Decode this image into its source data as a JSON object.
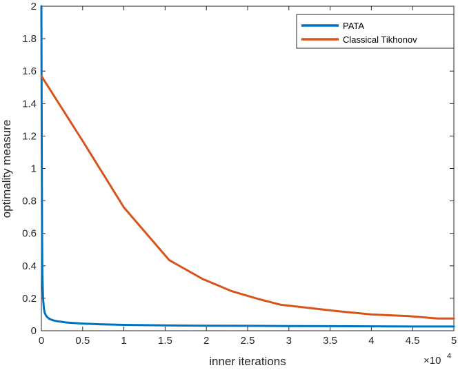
{
  "chart_data": {
    "type": "line",
    "title": "",
    "xlabel": "inner iterations",
    "ylabel": "optimality measure",
    "x_multiplier_base": "×10",
    "x_multiplier_exp": "4",
    "xlim": [
      0,
      50000
    ],
    "ylim": [
      0,
      2
    ],
    "xticks": [
      0,
      5000,
      10000,
      15000,
      20000,
      25000,
      30000,
      35000,
      40000,
      45000,
      50000
    ],
    "xtick_labels": [
      "0",
      "0.5",
      "1",
      "1.5",
      "2",
      "2.5",
      "3",
      "3.5",
      "4",
      "4.5",
      "5"
    ],
    "yticks": [
      0,
      0.2,
      0.4,
      0.6,
      0.8,
      1,
      1.2,
      1.4,
      1.6,
      1.8,
      2
    ],
    "ytick_labels": [
      "0",
      "0.2",
      "0.4",
      "0.6",
      "0.8",
      "1",
      "1.2",
      "1.4",
      "1.6",
      "1.8",
      "2"
    ],
    "legend_position": "top-right",
    "series": [
      {
        "name": "PATA",
        "color": "#0072BD",
        "x": [
          0,
          40,
          80,
          120,
          200,
          300,
          400,
          600,
          800,
          1000,
          1500,
          2000,
          3000,
          4000,
          5000,
          7000,
          10000,
          15000,
          20000,
          25000,
          30000,
          35000,
          40000,
          45000,
          50000
        ],
        "y": [
          2.0,
          1.2,
          0.6,
          0.35,
          0.2,
          0.14,
          0.11,
          0.09,
          0.08,
          0.072,
          0.063,
          0.058,
          0.051,
          0.047,
          0.044,
          0.04,
          0.036,
          0.033,
          0.031,
          0.03,
          0.029,
          0.028,
          0.027,
          0.026,
          0.026
        ]
      },
      {
        "name": "Classical Tikhonov",
        "color": "#D95319",
        "x": [
          0,
          5000,
          10000,
          15500,
          19500,
          23000,
          26000,
          29000,
          32500,
          36000,
          40000,
          44500,
          48000,
          50000
        ],
        "y": [
          1.57,
          1.17,
          0.76,
          0.435,
          0.32,
          0.245,
          0.2,
          0.16,
          0.14,
          0.12,
          0.1,
          0.09,
          0.075,
          0.075
        ]
      }
    ]
  }
}
